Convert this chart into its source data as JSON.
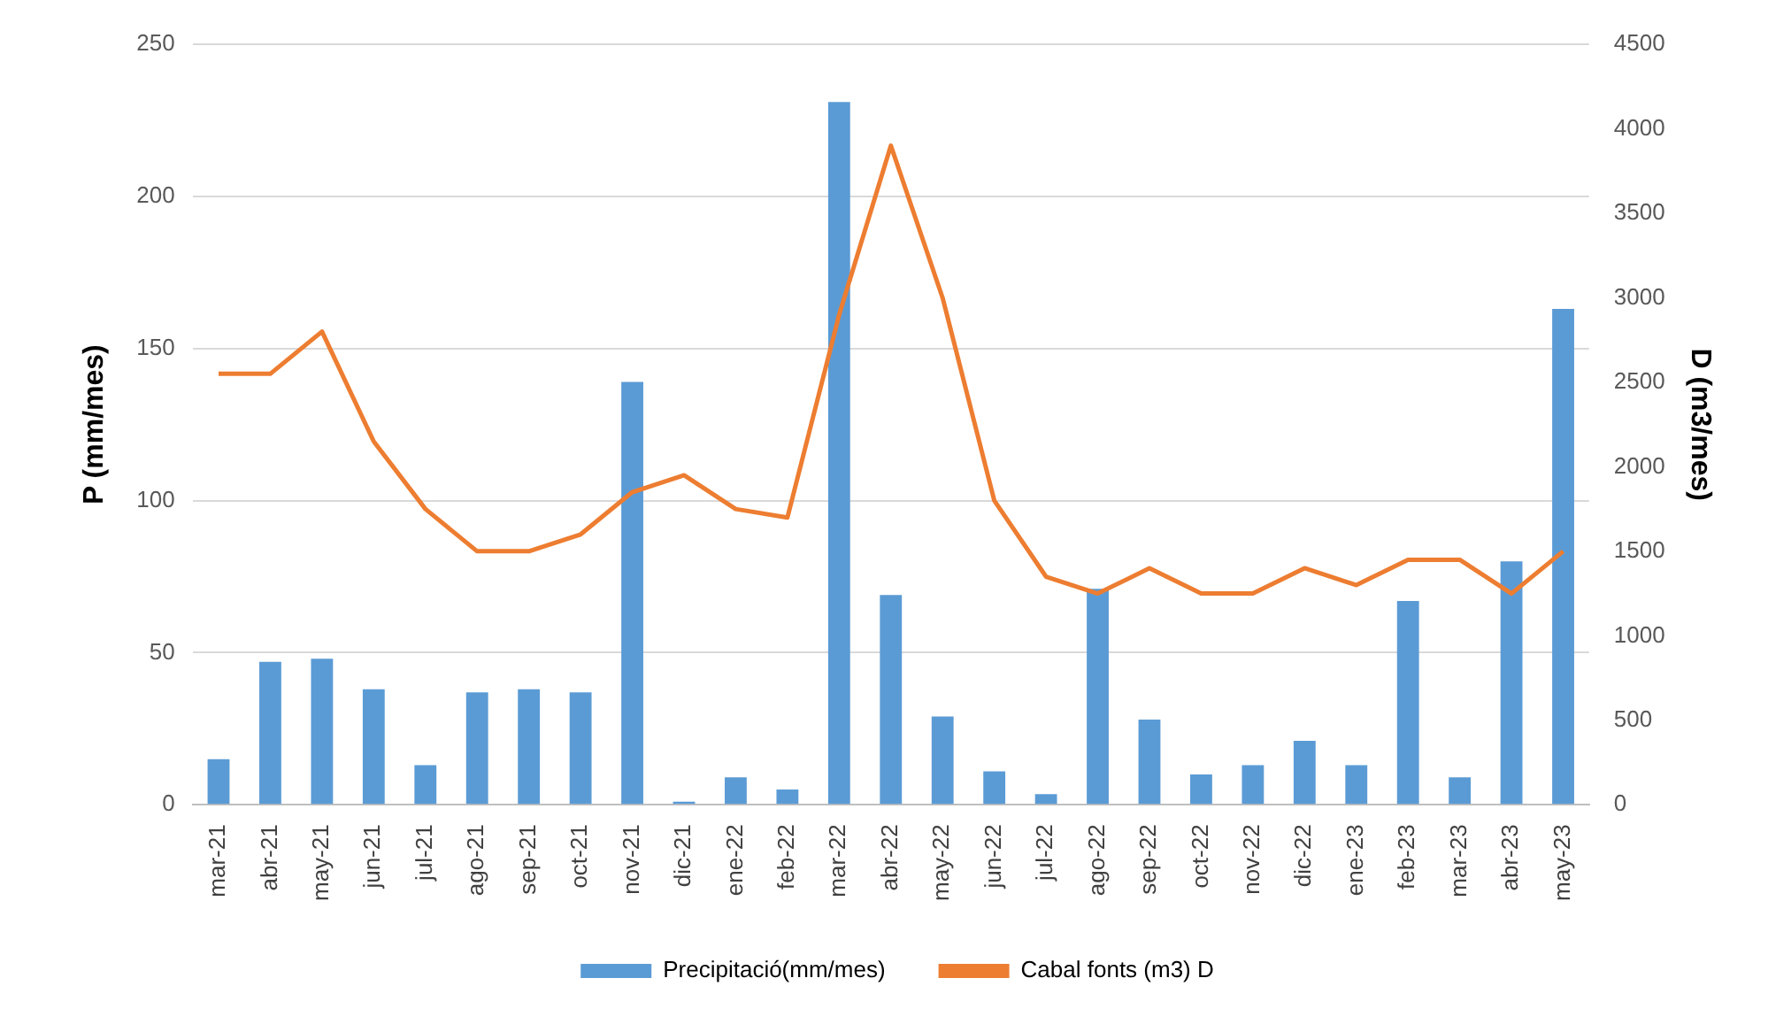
{
  "chart_data": {
    "type": "bar",
    "ylabel": "P (mm/mes)",
    "y2label": "D (m3/mes)",
    "categories": [
      "mar-21",
      "abr-21",
      "may-21",
      "jun-21",
      "jul-21",
      "ago-21",
      "sep-21",
      "oct-21",
      "nov-21",
      "dic-21",
      "ene-22",
      "feb-22",
      "mar-22",
      "abr-22",
      "may-22",
      "jun-22",
      "jul-22",
      "ago-22",
      "sep-22",
      "oct-22",
      "nov-22",
      "dic-22",
      "ene-23",
      "feb-23",
      "mar-23",
      "abr-23",
      "may-23"
    ],
    "series": [
      {
        "name": "Precipitació(mm/mes)",
        "color": "#5b9bd5",
        "values": [
          15,
          47,
          48,
          38,
          13,
          37,
          38,
          37,
          139,
          1,
          9,
          5,
          231,
          69,
          29,
          11,
          3.5,
          71,
          28,
          10,
          13,
          21,
          13,
          67,
          9,
          80,
          163
        ]
      },
      {
        "name": "Cabal fonts (m3) D",
        "type": "line",
        "axis": "y2",
        "color": "#ed7d31",
        "values": [
          2550,
          2550,
          2800,
          2150,
          1750,
          1500,
          1500,
          1600,
          1850,
          1950,
          1750,
          1700,
          2900,
          3900,
          3000,
          1800,
          1350,
          1250,
          1400,
          1250,
          1250,
          1400,
          1300,
          1450,
          1450,
          1250,
          1500
        ]
      }
    ],
    "ylim": [
      0,
      250
    ],
    "yticks": [
      0,
      50,
      100,
      150,
      200,
      250
    ],
    "y2lim": [
      0,
      4500
    ],
    "y2ticks": [
      0,
      500,
      1000,
      1500,
      2000,
      2500,
      3000,
      3500,
      4000,
      4500
    ],
    "grid": "y",
    "legend": "bottom",
    "marker": "none"
  }
}
